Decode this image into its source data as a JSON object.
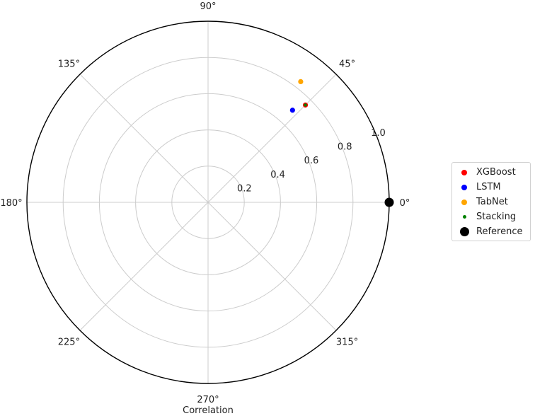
{
  "chart_data": {
    "type": "scatter",
    "projection": "polar",
    "xlabel": "Correlation",
    "angle_ticks": [
      "0°",
      "45°",
      "90°",
      "135°",
      "180°",
      "225°",
      "270°",
      "315°"
    ],
    "radial_ticks": [
      "0.2",
      "0.4",
      "0.6",
      "0.8",
      "1.0"
    ],
    "radial_tick_values": [
      0.2,
      0.4,
      0.6,
      0.8,
      1.0
    ],
    "rlim": [
      0,
      1.0
    ],
    "grid": true,
    "legend_position": "right",
    "series": [
      {
        "name": "XGBoost",
        "color": "#ff0000",
        "angle_deg": 45,
        "r": 0.76
      },
      {
        "name": "LSTM",
        "color": "#0000ff",
        "angle_deg": 47.5,
        "r": 0.69
      },
      {
        "name": "TabNet",
        "color": "#ffa500",
        "angle_deg": 52.5,
        "r": 0.84
      },
      {
        "name": "Stacking",
        "color": "#008000",
        "angle_deg": 45,
        "r": 0.76
      },
      {
        "name": "Reference",
        "color": "#000000",
        "angle_deg": 0,
        "r": 1.0
      }
    ]
  }
}
